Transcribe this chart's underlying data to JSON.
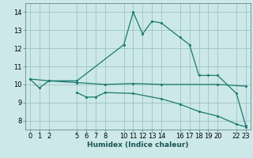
{
  "xlabel": "Humidex (Indice chaleur)",
  "ylabel": "",
  "bg_color": "#cce8e8",
  "grid_color": "#a0c4c4",
  "line_color": "#1a7a6e",
  "line1_x": [
    0,
    1,
    2,
    5,
    10,
    11,
    12,
    13,
    14,
    16,
    17,
    18,
    19,
    20,
    22,
    23
  ],
  "line1_y": [
    10.3,
    9.8,
    10.2,
    10.2,
    12.2,
    14.0,
    12.8,
    13.5,
    13.4,
    12.6,
    12.2,
    10.5,
    10.5,
    10.5,
    9.5,
    7.7
  ],
  "line2_x": [
    0,
    2,
    5,
    8,
    11,
    14,
    20,
    23
  ],
  "line2_y": [
    10.3,
    10.2,
    10.1,
    10.0,
    10.05,
    10.0,
    10.0,
    9.9
  ],
  "line3_x": [
    5,
    6,
    7,
    8,
    11,
    14,
    16,
    18,
    20,
    22,
    23
  ],
  "line3_y": [
    9.55,
    9.3,
    9.3,
    9.55,
    9.5,
    9.2,
    8.9,
    8.5,
    8.25,
    7.8,
    7.65
  ],
  "xlim": [
    -0.5,
    23.5
  ],
  "ylim": [
    7.5,
    14.5
  ],
  "xticks": [
    0,
    1,
    2,
    5,
    6,
    7,
    8,
    10,
    11,
    12,
    13,
    14,
    16,
    17,
    18,
    19,
    20,
    22,
    23
  ],
  "yticks": [
    8,
    9,
    10,
    11,
    12,
    13,
    14
  ],
  "xlabel_fontsize": 6.5,
  "tick_fontsize": 6
}
